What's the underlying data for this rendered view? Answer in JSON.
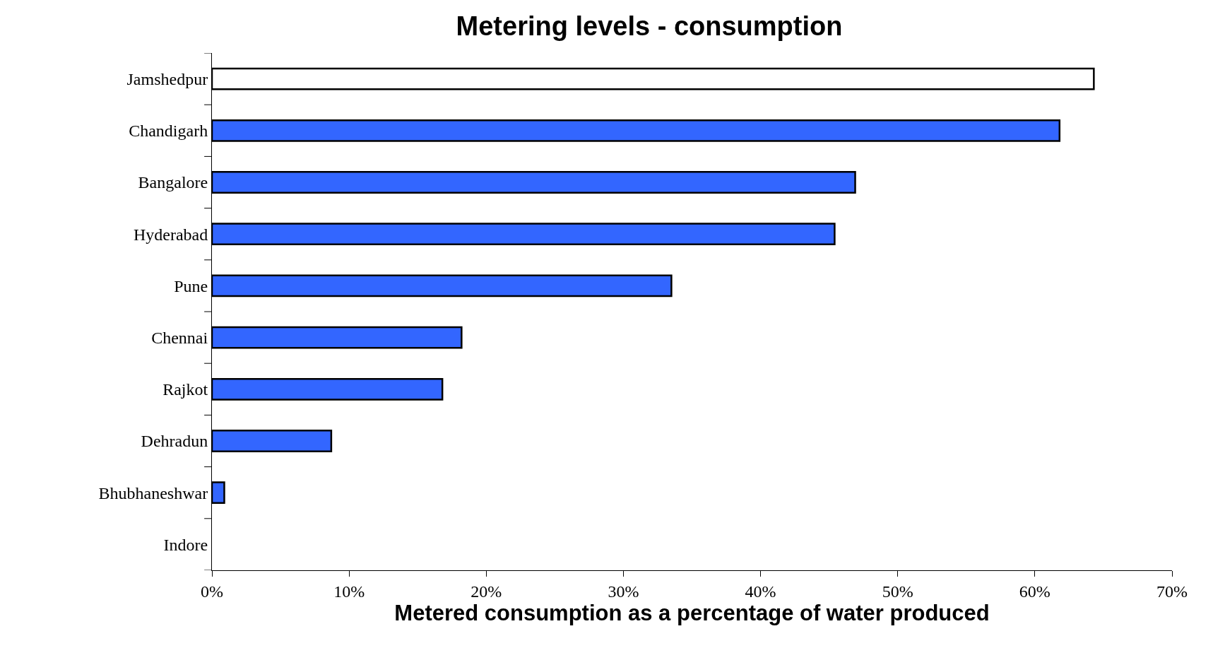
{
  "chart_data": {
    "type": "bar",
    "orientation": "horizontal",
    "title": "Metering levels - consumption",
    "xlabel": "Metered consumption as a percentage of water produced",
    "categories": [
      "Jamshedpur",
      "Chandigarh",
      "Bangalore",
      "Hyderabad",
      "Pune",
      "Chennai",
      "Rajkot",
      "Dehradun",
      "Bhubhaneshwar",
      "Indore"
    ],
    "values": [
      64.3,
      61.8,
      46.9,
      45.4,
      33.5,
      18.2,
      16.8,
      8.7,
      0.9,
      0
    ],
    "colors": [
      "#ffffff",
      "#3366ff",
      "#3366ff",
      "#3366ff",
      "#3366ff",
      "#3366ff",
      "#3366ff",
      "#3366ff",
      "#3366ff",
      "#3366ff"
    ],
    "xlim": [
      0,
      70
    ],
    "xticks": [
      {
        "value": 0,
        "label": "0%"
      },
      {
        "value": 10,
        "label": "10%"
      },
      {
        "value": 20,
        "label": "20%"
      },
      {
        "value": 30,
        "label": "30%"
      },
      {
        "value": 40,
        "label": "40%"
      },
      {
        "value": 50,
        "label": "50%"
      },
      {
        "value": 60,
        "label": "60%"
      },
      {
        "value": 70,
        "label": "70%"
      }
    ],
    "grid": false
  }
}
